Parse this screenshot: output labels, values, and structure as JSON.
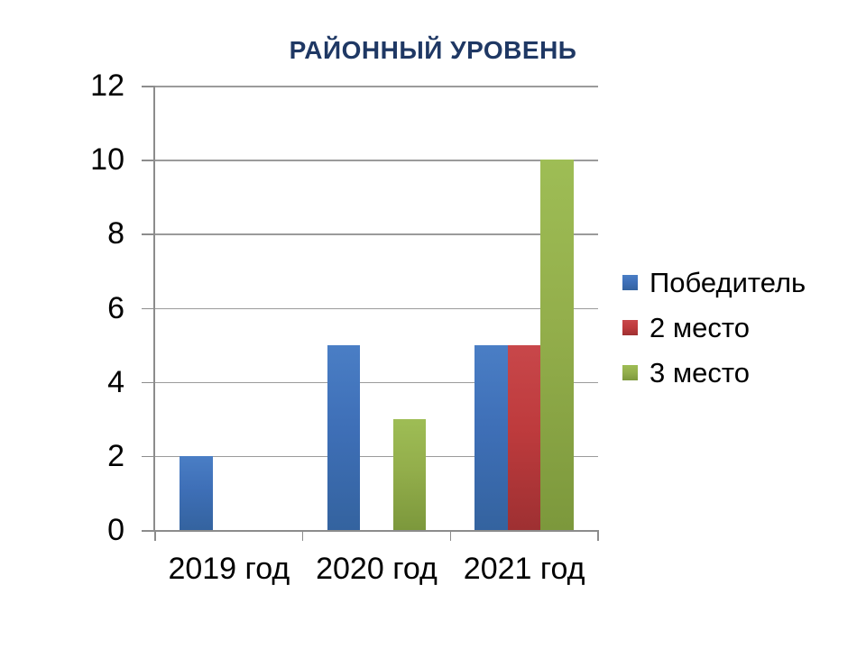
{
  "title": {
    "text": "РАЙОННЫЙ УРОВЕНЬ",
    "color": "#1F3864"
  },
  "chart_data": {
    "type": "bar",
    "title": "РАЙОННЫЙ УРОВЕНЬ",
    "categories": [
      "2019 год",
      "2020 год",
      "2021 год"
    ],
    "series": [
      {
        "name": "Победитель",
        "values": [
          2,
          5,
          5
        ],
        "color": "#3E6FB7",
        "gradient_top": "#4A7EC5",
        "gradient_bottom": "#34639F"
      },
      {
        "name": "2 место",
        "values": [
          0,
          0,
          5
        ],
        "color": "#BE3B3D",
        "gradient_top": "#C8474A",
        "gradient_bottom": "#9E3032"
      },
      {
        "name": "3 место",
        "values": [
          0,
          3,
          10
        ],
        "color": "#93AE4B",
        "gradient_top": "#9EBD55",
        "gradient_bottom": "#7C983C"
      }
    ],
    "ylim": [
      0,
      12
    ],
    "yticks": [
      0,
      2,
      4,
      6,
      8,
      10,
      12
    ],
    "xlabel": "",
    "ylabel": "",
    "grid": "horizontal",
    "legend_position": "right",
    "axis_color": "#8C8C8C",
    "background": "#FFFFFF"
  }
}
